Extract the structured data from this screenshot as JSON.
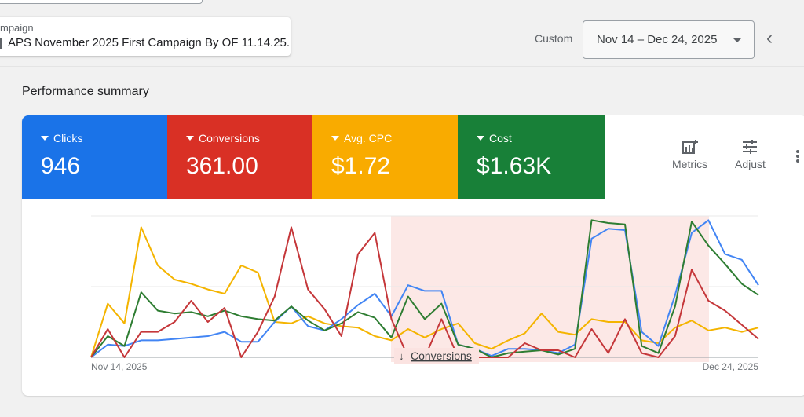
{
  "campaign": {
    "label": "mpaign",
    "name": "APS November 2025 First Campaign By OF 11.14.25."
  },
  "date_range": {
    "preset": "Custom",
    "value": "Nov 14 – Dec 24, 2025"
  },
  "icons": {
    "back": "chevron-left-icon",
    "dropdown": "caret-down-icon",
    "metrics": "add-chart-icon",
    "adjust": "tune-icon",
    "more": "more-vert-icon"
  },
  "summary": {
    "title": "Performance summary",
    "metrics": [
      {
        "name": "Clicks",
        "value": "946",
        "color": "#1a73e8"
      },
      {
        "name": "Conversions",
        "value": "361.00",
        "color": "#d93025"
      },
      {
        "name": "Avg. CPC",
        "value": "$1.72",
        "color": "#f9ab00"
      },
      {
        "name": "Cost",
        "value": "$1.63K",
        "color": "#188038"
      }
    ],
    "tools": {
      "metrics": "Metrics",
      "adjust": "Adjust"
    }
  },
  "chart_data": {
    "type": "line",
    "x_start": "Nov 14, 2025",
    "x_end": "Dec 24, 2025",
    "x_tick_labels": [
      "Nov 14, 2025",
      "Dec 24, 2025"
    ],
    "annotation": "Conversions",
    "annotation_icon": "arrow-down-icon",
    "grid": true,
    "note_scale": "each series independently scaled, values read as % of chart height",
    "series": [
      {
        "name": "Clicks",
        "color": "#4285f4",
        "values": [
          0,
          9,
          8,
          12,
          12,
          13,
          14,
          15,
          18,
          11,
          11,
          25,
          36,
          22,
          19,
          27,
          37,
          45,
          29,
          51,
          47,
          47,
          9,
          6,
          1,
          6,
          6,
          5,
          3,
          9,
          84,
          91,
          90,
          18,
          8,
          44,
          88,
          97,
          73,
          69,
          51
        ]
      },
      {
        "name": "Conversions",
        "color": "#c5373a",
        "values": [
          0,
          20,
          0,
          18,
          18,
          25,
          40,
          25,
          35,
          0,
          18,
          43,
          92,
          48,
          34,
          15,
          73,
          88,
          27,
          0,
          0,
          27,
          0,
          0,
          0,
          0,
          10,
          5,
          5,
          0,
          20,
          3,
          27,
          3,
          0,
          15,
          62,
          40,
          33,
          23,
          13
        ]
      },
      {
        "name": "Avg. CPC",
        "color": "#f4b400",
        "values": [
          0,
          38,
          24,
          92,
          65,
          55,
          52,
          48,
          45,
          65,
          60,
          25,
          24,
          29,
          24,
          22,
          21,
          15,
          12,
          20,
          14,
          20,
          24,
          10,
          6,
          12,
          17,
          31,
          18,
          16,
          27,
          25,
          25,
          12,
          10,
          21,
          26,
          19,
          21,
          18,
          21
        ]
      },
      {
        "name": "Cost",
        "color": "#2e7d32",
        "values": [
          0,
          15,
          8,
          46,
          33,
          31,
          32,
          29,
          33,
          29,
          27,
          26,
          36,
          26,
          19,
          24,
          32,
          28,
          14,
          43,
          27,
          38,
          9,
          6,
          0,
          3,
          4,
          5,
          2,
          6,
          97,
          95,
          94,
          8,
          3,
          36,
          96,
          79,
          66,
          52,
          44
        ]
      }
    ]
  }
}
